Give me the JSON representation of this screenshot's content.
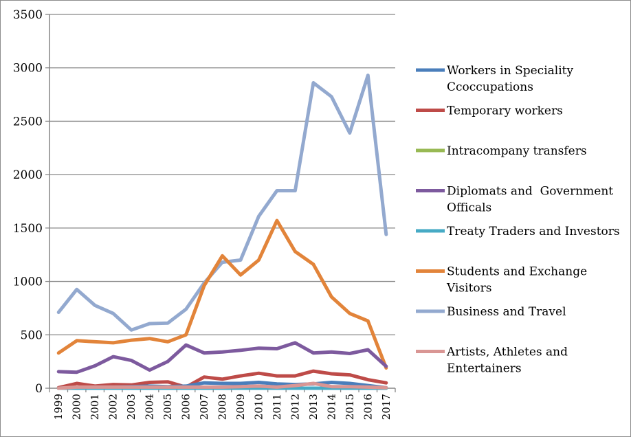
{
  "chart_data": {
    "type": "line",
    "title": "",
    "xlabel": "",
    "ylabel": "",
    "ylim": [
      0,
      3500
    ],
    "y_ticks": [
      0,
      500,
      1000,
      1500,
      2000,
      2500,
      3000,
      3500
    ],
    "grid": "horizontal",
    "legend_position": "right",
    "x": [
      "1999",
      "2000",
      "2001",
      "2002",
      "2003",
      "2004",
      "2005",
      "2006",
      "2007",
      "2008",
      "2009",
      "2010",
      "2011",
      "2012",
      "2013",
      "2014",
      "2015",
      "2016",
      "2017"
    ],
    "series": [
      {
        "name": "Business and Travel",
        "legend_lines": [
          "Business and Travel"
        ],
        "color": "#93a9cf",
        "values": [
          710,
          925,
          775,
          700,
          545,
          605,
          610,
          740,
          985,
          1180,
          1200,
          1610,
          1850,
          1850,
          2860,
          2730,
          2390,
          2930,
          1440
        ]
      },
      {
        "name": "Students and Exchange Visitors",
        "legend_lines": [
          "Students and Exchange",
          "Visitors"
        ],
        "color": "#e2843a",
        "values": [
          330,
          445,
          435,
          425,
          450,
          465,
          435,
          500,
          960,
          1240,
          1060,
          1200,
          1570,
          1280,
          1160,
          855,
          700,
          630,
          190
        ]
      },
      {
        "name": "Diplomats and  Government Officals",
        "legend_lines": [
          "Diplomats and  Government",
          "Officals"
        ],
        "color": "#7d5a9e",
        "values": [
          155,
          150,
          210,
          295,
          260,
          170,
          250,
          405,
          330,
          340,
          355,
          375,
          370,
          425,
          330,
          340,
          325,
          360,
          205
        ]
      },
      {
        "name": "Temporary workers",
        "legend_lines": [
          "Temporary workers"
        ],
        "color": "#be4b48",
        "values": [
          5,
          45,
          20,
          35,
          30,
          55,
          60,
          10,
          105,
          85,
          115,
          140,
          115,
          115,
          160,
          135,
          125,
          80,
          50
        ]
      },
      {
        "name": "Workers in Speciality Ccoccupations",
        "legend_lines": [
          "Workers in Speciality",
          "Ccoccupations"
        ],
        "color": "#4a7ebb",
        "values": [
          0,
          5,
          10,
          10,
          15,
          20,
          15,
          20,
          50,
          45,
          45,
          55,
          40,
          35,
          40,
          55,
          45,
          25,
          5
        ]
      },
      {
        "name": "Intracompany transfers",
        "legend_lines": [
          "Intracompany transfers"
        ],
        "color": "#98b954",
        "values": [
          0,
          0,
          0,
          0,
          0,
          0,
          0,
          0,
          5,
          5,
          5,
          5,
          5,
          0,
          0,
          0,
          0,
          0,
          0
        ]
      },
      {
        "name": "Treaty Traders and Investors",
        "legend_lines": [
          "Treaty Traders and Investors"
        ],
        "color": "#46aac5",
        "values": [
          0,
          0,
          0,
          0,
          0,
          0,
          0,
          0,
          0,
          0,
          0,
          0,
          0,
          0,
          0,
          0,
          0,
          0,
          0
        ]
      },
      {
        "name": "Artists, Athletes and Entertainers",
        "legend_lines": [
          "Artists, Athletes and",
          "Entertainers"
        ],
        "color": "#d99694",
        "values": [
          0,
          10,
          10,
          10,
          10,
          10,
          10,
          10,
          10,
          10,
          15,
          20,
          10,
          25,
          45,
          15,
          15,
          10,
          5
        ]
      }
    ],
    "legend_order": [
      "Workers in Speciality Ccoccupations",
      "Temporary workers",
      "Intracompany transfers",
      "Diplomats and  Government Officals",
      "Treaty Traders and Investors",
      "Students and Exchange Visitors",
      "Business and Travel",
      "Artists, Athletes and Entertainers"
    ]
  }
}
